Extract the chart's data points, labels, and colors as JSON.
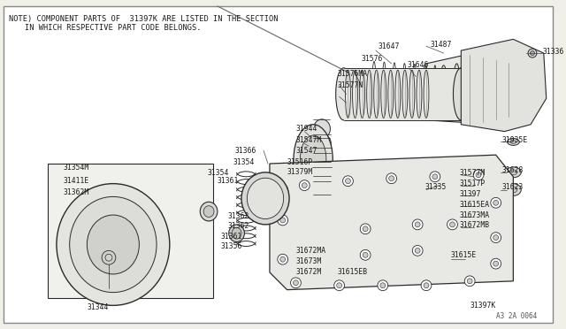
{
  "bg_color": "#f0efe8",
  "inner_bg": "#ffffff",
  "line_color": "#2a2a2a",
  "text_color": "#1a1a1a",
  "note_line1": "NOTE) COMPONENT PARTS OF  31397K ARE LISTED IN THE SECTION",
  "note_line2": "IN WHICH RESPECTIVE PART CODE BELONGS.",
  "diagram_id": "A3 2A 0064",
  "fontsize_labels": 5.8,
  "fontsize_note": 6.2
}
